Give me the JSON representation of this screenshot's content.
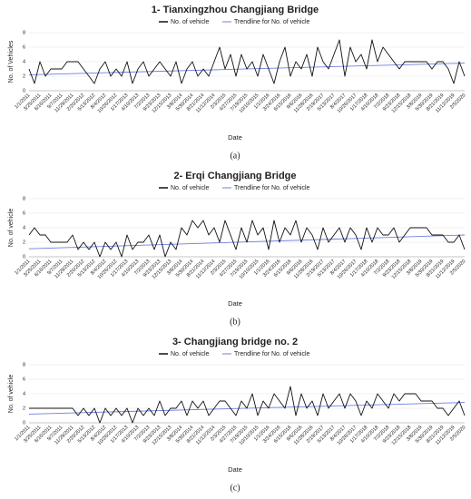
{
  "chart_data": [
    {
      "type": "line",
      "title": "1- Tianxingzhou Changjiang Bridge",
      "caption": "(a)",
      "x_label": "Date",
      "y_label": "No. of Vehicles",
      "categories": [
        "1/1/2011",
        null,
        "3/25/2011",
        null,
        "6/16/2011",
        null,
        "9/7/2011",
        null,
        "11/29/2011",
        null,
        "2/20/2012",
        null,
        "5/13/2012",
        null,
        "8/4/2012",
        null,
        "10/26/2012",
        null,
        "1/17/2013",
        null,
        "4/10/2013",
        null,
        "7/2/2013",
        null,
        "9/23/2013",
        null,
        "12/15/2013",
        null,
        "3/8/2014",
        null,
        "5/30/2014",
        null,
        "8/21/2014",
        null,
        "11/12/2014",
        null,
        "2/3/2015",
        null,
        "4/27/2015",
        null,
        "7/19/2015",
        null,
        "10/10/2015",
        null,
        "1/1/2016",
        null,
        "3/24/2016",
        null,
        "6/15/2016",
        null,
        "9/6/2016",
        null,
        "11/28/2016",
        null,
        "2/19/2017",
        null,
        "5/13/2017",
        null,
        "8/4/2017",
        null,
        "10/26/2017",
        null,
        "1/17/2018",
        null,
        "4/10/2018",
        null,
        "7/2/2018",
        null,
        "9/23/2018",
        null,
        "12/15/2018",
        null,
        "3/8/2019",
        null,
        "5/30/2019",
        null,
        "8/21/2019",
        null,
        "11/12/2019",
        null,
        "2/5/2020"
      ],
      "series": [
        {
          "name": "No. of vehicle",
          "color": "#111111",
          "values": [
            3,
            1,
            4,
            2,
            3,
            3,
            3,
            4,
            4,
            4,
            3,
            2,
            1,
            3,
            4,
            2,
            3,
            2,
            4,
            1,
            3,
            4,
            2,
            3,
            4,
            3,
            2,
            4,
            1,
            3,
            4,
            2,
            3,
            2,
            4,
            6,
            3,
            5,
            2,
            5,
            3,
            4,
            2,
            5,
            3,
            1,
            4,
            6,
            2,
            4,
            3,
            5,
            2,
            6,
            4,
            3,
            5,
            7,
            2,
            6,
            4,
            5,
            3,
            7,
            4,
            6,
            5,
            4,
            3,
            4,
            4,
            4,
            4,
            4,
            3,
            4,
            4,
            3,
            1,
            4,
            2
          ]
        }
      ],
      "trendline": {
        "name": "Trendline for No. of vehicle",
        "color": "#6b7fe0",
        "start": 2.2,
        "end": 3.8
      },
      "ylim": [
        0,
        8
      ],
      "yticks": [
        0,
        2,
        4,
        6,
        8
      ],
      "grid": true
    },
    {
      "type": "line",
      "title": "2- Erqi Changjiang Bridge",
      "caption": "(b)",
      "x_label": "Date",
      "y_label": "No. of vehicle",
      "categories": [
        "1/1/2011",
        null,
        "3/25/2011",
        null,
        "6/16/2011",
        null,
        "9/7/2011",
        null,
        "11/29/2011",
        null,
        "2/20/2012",
        null,
        "5/13/2012",
        null,
        "8/4/2012",
        null,
        "10/26/2012",
        null,
        "1/17/2013",
        null,
        "4/10/2013",
        null,
        "7/2/2013",
        null,
        "9/23/2013",
        null,
        "12/15/2013",
        null,
        "3/8/2014",
        null,
        "5/30/2014",
        null,
        "8/21/2014",
        null,
        "11/12/2014",
        null,
        "2/3/2015",
        null,
        "4/27/2015",
        null,
        "7/19/2015",
        null,
        "10/10/2015",
        null,
        "1/1/2016",
        null,
        "3/24/2016",
        null,
        "6/15/2016",
        null,
        "9/6/2016",
        null,
        "11/28/2016",
        null,
        "2/19/2017",
        null,
        "5/13/2017",
        null,
        "8/4/2017",
        null,
        "10/26/2017",
        null,
        "1/17/2018",
        null,
        "4/10/2018",
        null,
        "7/2/2018",
        null,
        "9/23/2018",
        null,
        "12/15/2018",
        null,
        "3/8/2019",
        null,
        "5/30/2019",
        null,
        "8/21/2019",
        null,
        "11/12/2019",
        null,
        "2/5/2020"
      ],
      "series": [
        {
          "name": "No. of vehicle",
          "color": "#111111",
          "values": [
            3,
            4,
            3,
            3,
            2,
            2,
            2,
            2,
            3,
            1,
            2,
            1,
            2,
            0,
            2,
            1,
            2,
            0,
            3,
            1,
            2,
            2,
            3,
            1,
            3,
            0,
            2,
            1,
            4,
            3,
            5,
            4,
            5,
            3,
            4,
            2,
            5,
            3,
            1,
            4,
            2,
            5,
            3,
            4,
            1,
            5,
            2,
            4,
            3,
            5,
            2,
            4,
            3,
            1,
            4,
            2,
            3,
            4,
            2,
            4,
            3,
            1,
            4,
            2,
            4,
            3,
            3,
            4,
            2,
            3,
            4,
            4,
            4,
            4,
            3,
            3,
            3,
            2,
            2,
            3,
            1
          ]
        }
      ],
      "trendline": {
        "name": "Trendline for No. of vehicle",
        "color": "#6b7fe0",
        "start": 1.1,
        "end": 3.0
      },
      "ylim": [
        0,
        8
      ],
      "yticks": [
        0,
        2,
        4,
        6,
        8
      ],
      "grid": true
    },
    {
      "type": "line",
      "title": "3- Changjiang bridge no. 2",
      "caption": "(c)",
      "x_label": "Date",
      "y_label": "No. of vehicle",
      "categories": [
        "1/1/2011",
        null,
        "3/25/2011",
        null,
        "6/16/2011",
        null,
        "9/7/2011",
        null,
        "11/29/2011",
        null,
        "2/20/2012",
        null,
        "5/13/2012",
        null,
        "8/4/2012",
        null,
        "10/26/2012",
        null,
        "1/17/2013",
        null,
        "4/10/2013",
        null,
        "7/2/2013",
        null,
        "9/23/2013",
        null,
        "12/15/2013",
        null,
        "3/8/2014",
        null,
        "5/30/2014",
        null,
        "8/21/2014",
        null,
        "11/12/2014",
        null,
        "2/3/2015",
        null,
        "4/27/2015",
        null,
        "7/19/2015",
        null,
        "10/10/2015",
        null,
        "1/1/2016",
        null,
        "3/24/2016",
        null,
        "6/15/2016",
        null,
        "9/6/2016",
        null,
        "11/28/2016",
        null,
        "2/19/2017",
        null,
        "5/13/2017",
        null,
        "8/4/2017",
        null,
        "10/26/2017",
        null,
        "1/17/2018",
        null,
        "4/10/2018",
        null,
        "7/2/2018",
        null,
        "9/23/2018",
        null,
        "12/15/2018",
        null,
        "3/8/2019",
        null,
        "5/30/2019",
        null,
        "8/21/2019",
        null,
        "11/12/2019",
        null,
        "2/5/2020"
      ],
      "series": [
        {
          "name": "No. of vehicle",
          "color": "#111111",
          "values": [
            2,
            2,
            2,
            2,
            2,
            2,
            2,
            2,
            2,
            1,
            2,
            1,
            2,
            0,
            2,
            1,
            2,
            1,
            2,
            0,
            2,
            1,
            2,
            1,
            3,
            1,
            2,
            2,
            3,
            1,
            3,
            2,
            3,
            1,
            2,
            3,
            3,
            2,
            1,
            3,
            2,
            4,
            1,
            3,
            2,
            4,
            3,
            2,
            5,
            1,
            4,
            2,
            3,
            1,
            4,
            2,
            3,
            4,
            2,
            4,
            3,
            1,
            3,
            2,
            4,
            3,
            2,
            4,
            3,
            4,
            4,
            4,
            3,
            3,
            3,
            2,
            2,
            1,
            2,
            3,
            1
          ]
        }
      ],
      "trendline": {
        "name": "Trendline for No. of vehicle",
        "color": "#6b7fe0",
        "start": 1.2,
        "end": 2.8
      },
      "ylim": [
        0,
        8
      ],
      "yticks": [
        0,
        2,
        4,
        6,
        8
      ],
      "grid": true
    }
  ]
}
